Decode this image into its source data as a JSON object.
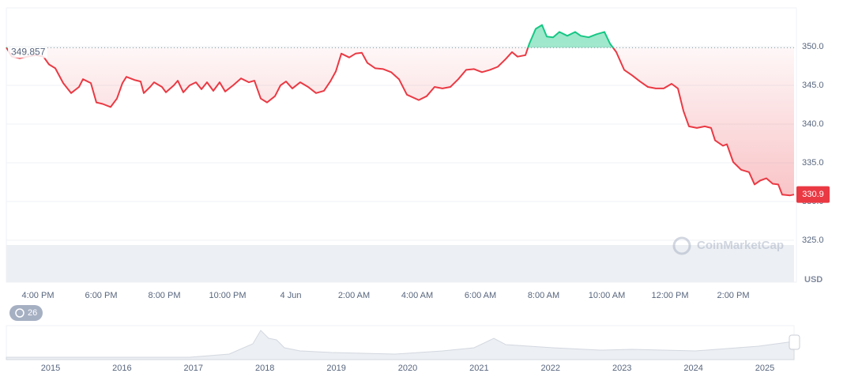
{
  "chart_data": {
    "type": "line",
    "baseline": 349.857,
    "current_price": 330.9,
    "currency": "USD",
    "watermark": "CoinMarketCap",
    "history_badge": 26,
    "x": [
      -9,
      -8.825,
      -8.575,
      -8.325,
      -8.075,
      -7.825,
      -7.65,
      -7.45,
      -7.2,
      -6.95,
      -6.7,
      -6.575,
      -6.325,
      -6.15,
      -5.95,
      -5.7,
      -5.5,
      -5.325,
      -5.2,
      -4.95,
      -4.75,
      -4.65,
      -4.45,
      -4.325,
      -4.075,
      -3.95,
      -3.7,
      -3.575,
      -3.4,
      -3.2,
      -3,
      -2.825,
      -2.65,
      -2.45,
      -2.25,
      -2.075,
      -1.825,
      -1.575,
      -1.325,
      -1.15,
      -0.95,
      -0.75,
      -0.5,
      -0.325,
      -0.15,
      0.05,
      0.3,
      0.55,
      0.8,
      1.05,
      1.25,
      1.425,
      1.6,
      1.85,
      2.05,
      2.25,
      2.425,
      2.675,
      2.925,
      3.175,
      3.425,
      3.675,
      4.05,
      4.3,
      4.55,
      4.8,
      5.05,
      5.3,
      5.55,
      5.8,
      6.05,
      6.3,
      6.55,
      6.8,
      7,
      7.175,
      7.425,
      7.55,
      7.75,
      7.95,
      8.1,
      8.3,
      8.5,
      8.75,
      9,
      9.175,
      9.425,
      9.675,
      9.925,
      10.1,
      10.3,
      10.55,
      10.8,
      11.05,
      11.3,
      11.55,
      11.8,
      12.05,
      12.25,
      12.425,
      12.6,
      12.85,
      13.1,
      13.3,
      13.425,
      13.675,
      13.8,
      14,
      14.25,
      14.5,
      14.675,
      14.85,
      15.05,
      15.25,
      15.425,
      15.55,
      15.8,
      15.925
    ],
    "series": [
      {
        "name": "Price",
        "color_up": "#16c784",
        "color_down": "#ea3943",
        "values": [
          349.9,
          348.7,
          348.5,
          348.7,
          348.9,
          348.7,
          347.7,
          347.2,
          345.3,
          344.0,
          344.8,
          345.8,
          345.3,
          342.8,
          342.6,
          342.2,
          343.3,
          345.3,
          346.1,
          345.7,
          345.5,
          344.0,
          344.8,
          345.4,
          344.8,
          344.1,
          345.0,
          345.6,
          344.1,
          345.0,
          345.4,
          344.5,
          345.4,
          344.3,
          345.4,
          344.2,
          345.0,
          345.9,
          345.4,
          345.6,
          343.3,
          342.8,
          343.6,
          345.0,
          345.5,
          344.6,
          345.4,
          344.8,
          344.0,
          344.3,
          345.5,
          346.8,
          349.1,
          348.6,
          349.1,
          349.2,
          347.9,
          347.2,
          347.1,
          346.7,
          345.8,
          343.8,
          343.1,
          343.6,
          344.8,
          344.6,
          344.8,
          345.8,
          347.0,
          347.1,
          346.7,
          347.0,
          347.4,
          348.4,
          349.3,
          348.7,
          348.9,
          350.4,
          352.3,
          352.8,
          351.3,
          351.2,
          351.9,
          351.4,
          351.9,
          351.4,
          351.2,
          351.6,
          351.9,
          350.4,
          349.3,
          347.0,
          346.3,
          345.5,
          344.8,
          344.6,
          344.6,
          345.2,
          344.6,
          341.7,
          339.7,
          339.5,
          339.7,
          339.5,
          337.9,
          337.2,
          337.4,
          335.1,
          334.1,
          333.8,
          332.2,
          332.7,
          333.0,
          332.3,
          332.2,
          330.9,
          330.8,
          330.9
        ]
      }
    ],
    "xlim": [
      -9,
      15.925
    ],
    "xticks": [
      {
        "value": -8,
        "label": "4:00 PM"
      },
      {
        "value": -6,
        "label": "6:00 PM"
      },
      {
        "value": -4,
        "label": "8:00 PM"
      },
      {
        "value": -2,
        "label": "10:00 PM"
      },
      {
        "value": 0,
        "label": "4 Jun"
      },
      {
        "value": 2,
        "label": "2:00 AM"
      },
      {
        "value": 4,
        "label": "4:00 AM"
      },
      {
        "value": 6,
        "label": "6:00 AM"
      },
      {
        "value": 8,
        "label": "8:00 AM"
      },
      {
        "value": 10,
        "label": "10:00 AM"
      },
      {
        "value": 12,
        "label": "12:00 PM"
      },
      {
        "value": 14,
        "label": "2:00 PM"
      }
    ],
    "ylim": [
      320,
      355
    ],
    "yticks": [
      {
        "value": 325,
        "label": "325.0"
      },
      {
        "value": 330,
        "label": "330.0"
      },
      {
        "value": 335,
        "label": "335.0"
      },
      {
        "value": 340,
        "label": "340.0"
      },
      {
        "value": 345,
        "label": "345.0"
      },
      {
        "value": 350,
        "label": "350.0"
      }
    ],
    "grid": true,
    "navigator_labels": [
      "2015",
      "2016",
      "2017",
      "2018",
      "2019",
      "2020",
      "2021",
      "2022",
      "2023",
      "2024",
      "2025"
    ]
  }
}
